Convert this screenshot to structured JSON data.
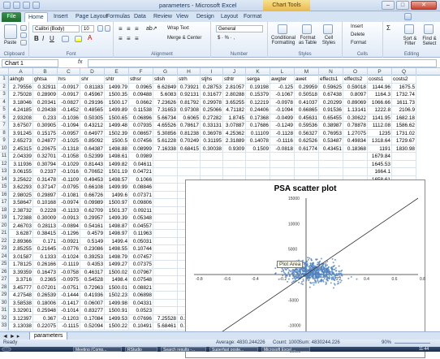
{
  "window": {
    "title": "parameters - Microsoft Excel",
    "context_tab": "Chart Tools"
  },
  "tabs": [
    "File",
    "Home",
    "Insert",
    "Page Layout",
    "Formulas",
    "Data",
    "Review",
    "View",
    "Design",
    "Layout",
    "Format"
  ],
  "ribbon": {
    "clipboard": {
      "label": "Clipboard",
      "paste": "Paste"
    },
    "font": {
      "label": "Font",
      "name": "Calibri (Body)",
      "size": "10"
    },
    "alignment": {
      "label": "Alignment",
      "wrap": "Wrap Text",
      "merge": "Merge & Center"
    },
    "number": {
      "label": "Number",
      "format": "General",
      "symbols": "$ · % · ,"
    },
    "styles": {
      "label": "Styles",
      "conditional": "Conditional Formatting",
      "table": "Format as Table",
      "cell": "Cell Styles"
    },
    "cells": {
      "label": "Cells",
      "insert": "Insert",
      "delete": "Delete",
      "format": "Format"
    },
    "editing": {
      "label": "Editing",
      "sort": "Sort & Filter",
      "find": "Find & Select"
    }
  },
  "formula_bar": {
    "name_box": "Chart 1",
    "fx": "fx",
    "formula": ""
  },
  "columns": [
    "A",
    "B",
    "C",
    "D",
    "E",
    "F",
    "G",
    "H",
    "I",
    "J",
    "K",
    "L",
    "M",
    "N",
    "O",
    "P",
    "Q"
  ],
  "rows": [
    [
      "akhgb",
      "ghtsa",
      "hrs",
      "shr",
      "shtr",
      "sthsr",
      "stlsh",
      "strh",
      "stjhs",
      "sthtr",
      "serga",
      "awgter",
      "awet",
      "effects1",
      "effects2",
      "costs1",
      "costs2"
    ],
    [
      "2.79556",
      "0.32911",
      "-0.0917",
      "0.81183",
      "1499.79",
      "0.0965",
      "6.62849",
      "0.73921",
      "0.28753",
      "2.81057",
      "0.19198",
      "-0.125",
      "0.29959",
      "0.59625",
      "0.59018",
      "1144.96",
      "1675.5"
    ],
    [
      "2.75028",
      "0.28909",
      "-0.0917",
      "0.45967",
      "1500.35",
      "0.09488",
      "5.6083",
      "0.92131",
      "0.31677",
      "2.80288",
      "0.15379",
      "-0.1067",
      "0.50518",
      "0.67438",
      "0.8097",
      "1164.3",
      "1732.74"
    ],
    [
      "3.18046",
      "0.20341",
      "-0.0827",
      "0.29196",
      "1500.17",
      "0.0662",
      "7.23626",
      "0.81792",
      "0.29978",
      "3.65255",
      "0.12219",
      "-0.0978",
      "0.41037",
      "0.20299",
      "0.89069",
      "1066.66",
      "1611.73"
    ],
    [
      "4.24185",
      "0.20438",
      "-0.1452",
      "0.48565",
      "1499.89",
      "0.11538",
      "7.31653",
      "0.97308",
      "0.25066",
      "4.71182",
      "0.24406",
      "-0.1094",
      "0.66865",
      "0.91536",
      "1.13141",
      "1222.8",
      "2106.9"
    ],
    [
      "2.93208",
      "0.233",
      "-0.1036",
      "0.50305",
      "1500.65",
      "0.06896",
      "5.66734",
      "0.6065",
      "0.27282",
      "1.8745",
      "0.17368",
      "-0.0499",
      "0.45631",
      "0.65455",
      "0.30622",
      "1141.95",
      "1682.18"
    ],
    [
      "3.67507",
      "0.30905",
      "-0.1094",
      "0.43212",
      "1499.48",
      "0.07935",
      "4.65526",
      "0.78617",
      "0.33131",
      "3.07887",
      "0.17686",
      "-0.1249",
      "0.59536",
      "0.38987",
      "0.78878",
      "1112.08",
      "1586.62"
    ],
    [
      "3.91245",
      "0.15175",
      "-0.0957",
      "0.64977",
      "1502.39",
      "0.08657",
      "5.30856",
      "0.81238",
      "0.36978",
      "4.25362",
      "0.11109",
      "-0.1128",
      "0.56327",
      "0.76953",
      "1.27075",
      "1235",
      "1731.02"
    ],
    [
      "2.65273",
      "0.24877",
      "-0.1025",
      "0.85092",
      "1500.5",
      "0.07456",
      "5.61228",
      "0.70249",
      "0.31195",
      "2.31889",
      "0.14078",
      "-0.1116",
      "0.62526",
      "0.53487",
      "0.49834",
      "1318.64",
      "1729.67"
    ],
    [
      "2.45315",
      "0.20675",
      "-0.1318",
      "0.64387",
      "1498.88",
      "0.08999",
      "7.16338",
      "0.68415",
      "0.30038",
      "0.9309",
      "0.1509",
      "-0.0818",
      "0.61774",
      "0.43451",
      "0.18368",
      "1191",
      "1830.98"
    ],
    [
      "2.04339",
      "0.32701",
      "-0.1058",
      "0.52399",
      "1498.61",
      "0.0989",
      "",
      "",
      "",
      "",
      "",
      "",
      "",
      "",
      "",
      "1679.84",
      ""
    ],
    [
      "3.11936",
      "0.30794",
      "-0.1029",
      "0.81443",
      "1499.82",
      "0.04611",
      "",
      "",
      "",
      "",
      "",
      "",
      "",
      "",
      "",
      "1645.53",
      ""
    ],
    [
      "3.06155",
      "0.2337",
      "-0.1016",
      "0.70652",
      "1501.19",
      "0.04721",
      "",
      "",
      "",
      "",
      "",
      "",
      "",
      "",
      "",
      "1664.1",
      ""
    ],
    [
      "3.25622",
      "0.31478",
      "-0.1109",
      "0.49453",
      "1498.57",
      "0.1066",
      "",
      "",
      "",
      "",
      "",
      "",
      "",
      "",
      "",
      "1658.61",
      ""
    ],
    [
      "3.62293",
      "0.37147",
      "-0.0795",
      "0.66108",
      "1499.99",
      "0.08846",
      "",
      "",
      "",
      "",
      "",
      "",
      "",
      "",
      "",
      "1472",
      ""
    ],
    [
      "2.98025",
      "0.29897",
      "-0.1081",
      "0.66726",
      "1499.6",
      "0.07371",
      "",
      "",
      "",
      "",
      "",
      "",
      "",
      "",
      "",
      "1820.13",
      ""
    ],
    [
      "3.58647",
      "0.10168",
      "-0.0974",
      "0.09989",
      "1500.97",
      "0.09806",
      "",
      "",
      "",
      "",
      "",
      "",
      "",
      "",
      "",
      "1722.65",
      ""
    ],
    [
      "2.38732",
      "0.2228",
      "-0.1133",
      "0.62709",
      "1501.37",
      "0.09211",
      "",
      "",
      "",
      "",
      "",
      "",
      "",
      "",
      "",
      "1736.33",
      ""
    ],
    [
      "1.72388",
      "0.30009",
      "-0.0913",
      "0.29957",
      "1499.39",
      "0.05348",
      "",
      "",
      "",
      "",
      "",
      "",
      "",
      "",
      "",
      "1685.53",
      ""
    ],
    [
      "2.46703",
      "0.28113",
      "-0.0894",
      "0.54161",
      "1498.87",
      "0.04557",
      "",
      "",
      "",
      "",
      "",
      "",
      "",
      "",
      "",
      "1630.82",
      ""
    ],
    [
      "3.6287",
      "0.38415",
      "-0.1296",
      "0.4579",
      "1498.97",
      "0.11963",
      "",
      "",
      "",
      "",
      "",
      "",
      "",
      "",
      "",
      "1894.04",
      ""
    ],
    [
      "2.89366",
      "0.171",
      "-0.0921",
      "0.5149",
      "1499.4",
      "0.05031",
      "",
      "",
      "",
      "",
      "",
      "",
      "",
      "",
      "",
      "1767.82",
      ""
    ],
    [
      "2.85255",
      "0.21645",
      "-0.0776",
      "0.23086",
      "1498.55",
      "0.10744",
      "",
      "",
      "",
      "",
      "",
      "",
      "",
      "",
      "",
      "1910.95",
      ""
    ],
    [
      "3.01587",
      "0.1333",
      "-0.1024",
      "0.39253",
      "1498.79",
      "0.07457",
      "",
      "",
      "",
      "",
      "",
      "",
      "",
      "",
      "",
      "1669.83",
      ""
    ],
    [
      "1.78125",
      "0.26166",
      "-0.1119",
      "0.4353",
      "1499.27",
      "0.07375",
      "",
      "",
      "",
      "",
      "",
      "",
      "",
      "",
      "",
      "1566.08",
      ""
    ],
    [
      "3.39359",
      "0.16473",
      "-0.0758",
      "0.46317",
      "1500.02",
      "0.07967",
      "",
      "",
      "",
      "",
      "",
      "",
      "",
      "",
      "",
      "1741.68",
      ""
    ],
    [
      "3.3716",
      "0.2365",
      "-0.0975",
      "0.54528",
      "1498.4",
      "0.07548",
      "",
      "",
      "",
      "",
      "",
      "",
      "",
      "",
      "",
      "1658.88",
      ""
    ],
    [
      "3.45777",
      "0.07201",
      "-0.0751",
      "0.72963",
      "1500.01",
      "0.08821",
      "",
      "",
      "",
      "",
      "",
      "",
      "",
      "",
      "",
      "1649.88",
      ""
    ],
    [
      "4.27548",
      "0.26539",
      "-0.1444",
      "0.41936",
      "1502.23",
      "0.06898",
      "",
      "",
      "",
      "",
      "",
      "",
      "",
      "",
      "",
      "1598.09",
      ""
    ],
    [
      "3.58538",
      "0.18006",
      "-0.1417",
      "0.06007",
      "1499.98",
      "0.04331",
      "",
      "",
      "",
      "",
      "",
      "",
      "",
      "",
      "",
      "1554.37",
      ""
    ],
    [
      "3.32901",
      "0.25948",
      "-0.1014",
      "0.83277",
      "1500.91",
      "0.0523",
      "",
      "",
      "",
      "",
      "",
      "",
      "",
      "",
      "",
      "1649.23",
      ""
    ],
    [
      "3.12397",
      "0.367",
      "-0.1203",
      "0.17084",
      "1499.53",
      "0.07696",
      "7.25528",
      "0.38888",
      "0.38847",
      "2.22288",
      "0.21157",
      "-0.0977",
      "0.70578",
      "0.98388",
      "0.62876",
      "1257.87",
      "1884.05"
    ],
    [
      "3.13038",
      "0.22075",
      "-0.1115",
      "0.52094",
      "1500.22",
      "0.10491",
      "5.68461",
      "0.79243",
      "0.35434",
      "4.34382",
      "0.26242",
      "-0.0753",
      "0.39521",
      "0.46596",
      "1.21191",
      "1265.16",
      "1728.5"
    ]
  ],
  "chart": {
    "title": "PSA scatter plot",
    "tooltip": "Plot Area"
  },
  "chart_data": {
    "type": "scatter",
    "title": "PSA scatter plot",
    "xlabel": "",
    "ylabel": "",
    "xlim": [
      -0.8,
      0.8
    ],
    "ylim": [
      -15000,
      15000
    ],
    "x_ticks": [
      "-0.8",
      "-0.6",
      "-0.4",
      "-0.2",
      "0",
      "0.2",
      "0.4",
      "0.6",
      "0.8"
    ],
    "y_ticks": [
      "15000",
      "10000",
      "5000",
      "0",
      "-5000",
      "-10000",
      "-15000"
    ],
    "series": [
      {
        "description": "point cloud",
        "x_range": [
          -0.4,
          0.6
        ],
        "y_range": [
          -5000,
          5000
        ],
        "center": [
          0.05,
          500
        ]
      },
      {
        "description": "threshold line",
        "points": [
          [
            -0.8,
            -16000
          ],
          [
            0.8,
            16000
          ]
        ]
      }
    ]
  },
  "sheet_tabs": [
    "parameters"
  ],
  "status": {
    "left": "Ready",
    "average": "Average: 4830.244226",
    "count": "Count: 1000",
    "sum": "Sum: 4830244.226",
    "zoom": "90%"
  },
  "taskbar": [
    "Meeting (Comp...",
    "RStudio",
    "Search results -...",
    "Superfast poste...",
    "Microsoft Excel ..."
  ],
  "clock": "11:44",
  "colors": {
    "accent": "#1e395b",
    "scatter": "#4f81bd",
    "file_tab": "#1e6b30",
    "chart_tools": "#e9b94f"
  }
}
